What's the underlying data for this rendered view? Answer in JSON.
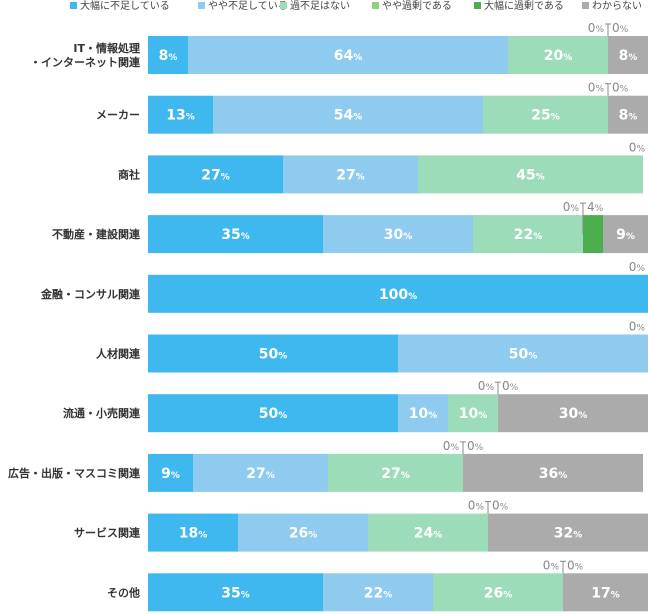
{
  "chart_data": {
    "type": "bar",
    "orientation": "horizontal",
    "stacked": true,
    "percent_sign": "%",
    "legend_position": "top",
    "xlim": [
      0,
      100
    ],
    "categories": [
      [
        "IT・情報処理",
        "・インターネット関連"
      ],
      [
        "メーカー"
      ],
      [
        "商社"
      ],
      [
        "不動産・建設関連"
      ],
      [
        "金融・コンサル関連"
      ],
      [
        "人材関連"
      ],
      [
        "流通・小売関連"
      ],
      [
        "広告・出版・マスコミ関連"
      ],
      [
        "サービス関連"
      ],
      [
        "その他"
      ]
    ],
    "series": [
      {
        "name": "大幅に不足している",
        "color": "#3fb8ef",
        "values": [
          8,
          13,
          27,
          35,
          100,
          50,
          50,
          9,
          18,
          35
        ]
      },
      {
        "name": "やや不足している",
        "color": "#8ecbef",
        "values": [
          64,
          54,
          27,
          30,
          0,
          50,
          10,
          27,
          26,
          22
        ]
      },
      {
        "name": "過不足はない",
        "color": "#9ddcb9",
        "values": [
          20,
          25,
          45,
          22,
          0,
          0,
          10,
          27,
          24,
          26
        ]
      },
      {
        "name": "やや過剰である",
        "color": "#8cd47e",
        "values": [
          0,
          0,
          0,
          0,
          0,
          0,
          0,
          0,
          0,
          0
        ]
      },
      {
        "name": "大幅に過剰である",
        "color": "#4cae4c",
        "values": [
          0,
          0,
          0,
          4,
          0,
          0,
          0,
          0,
          0,
          0
        ]
      },
      {
        "name": "わからない",
        "color": "#ababab",
        "values": [
          8,
          8,
          0,
          9,
          0,
          0,
          30,
          36,
          32,
          17
        ]
      }
    ]
  }
}
